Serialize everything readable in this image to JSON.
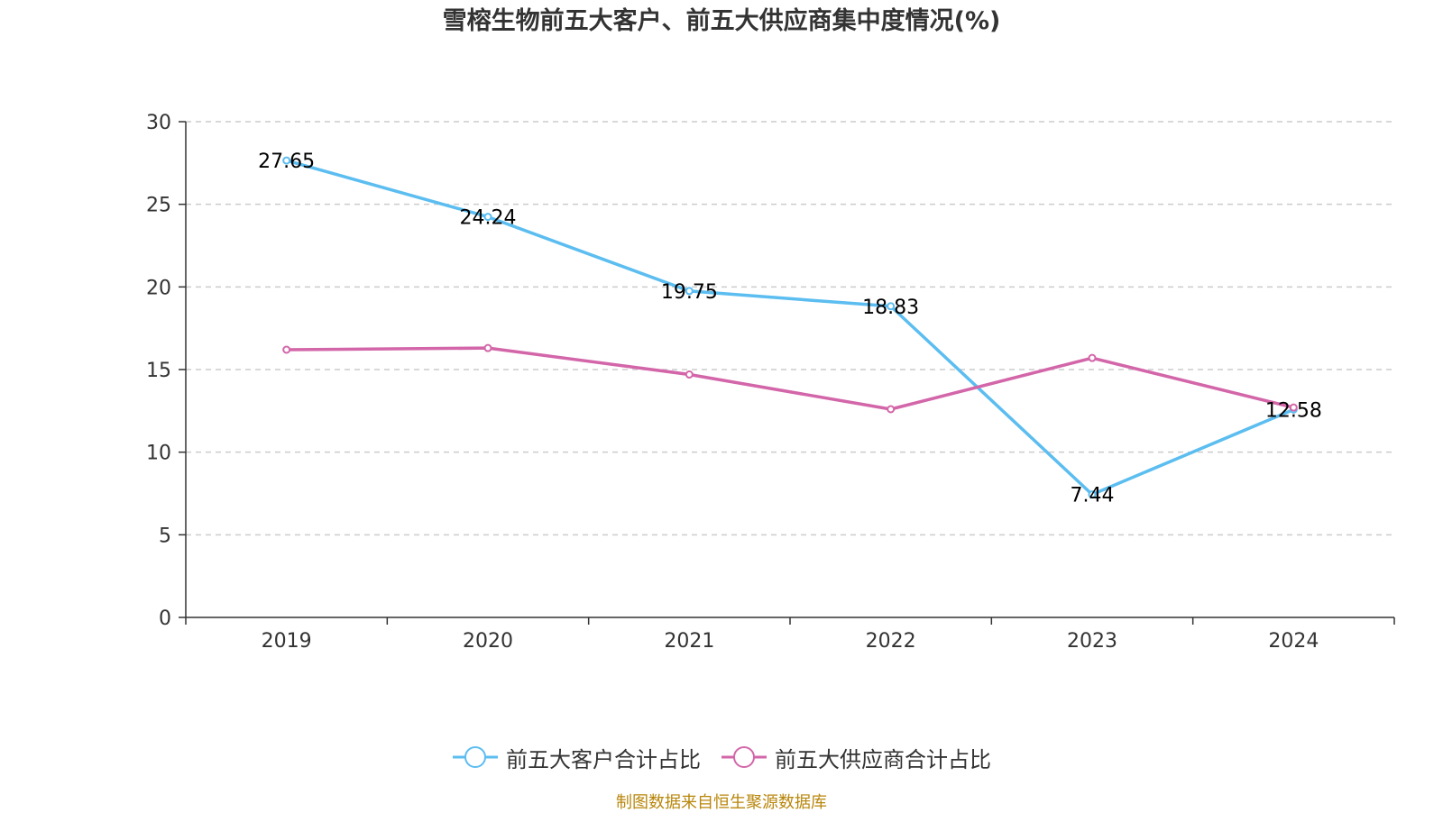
{
  "chart_data": {
    "type": "line",
    "title": "雪榕生物前五大客户、前五大供应商集中度情况(%)",
    "categories": [
      "2019",
      "2020",
      "2021",
      "2022",
      "2023",
      "2024"
    ],
    "ylim": [
      0,
      30
    ],
    "yticks": [
      0,
      5,
      10,
      15,
      20,
      25,
      30
    ],
    "grid": true,
    "legend_position": "bottom",
    "series": [
      {
        "name": "前五大客户合计占比",
        "color": "#5bbdf0",
        "values": [
          27.65,
          24.24,
          19.75,
          18.83,
          7.44,
          12.58
        ],
        "labels": [
          "27.65",
          "24.24",
          "19.75",
          "18.83",
          "7.44",
          "12.58"
        ]
      },
      {
        "name": "前五大供应商合计占比",
        "color": "#d366a9",
        "values": [
          16.2,
          16.3,
          14.7,
          12.6,
          15.7,
          12.7
        ],
        "labels": []
      }
    ]
  },
  "source": "制图数据来自恒生聚源数据库"
}
